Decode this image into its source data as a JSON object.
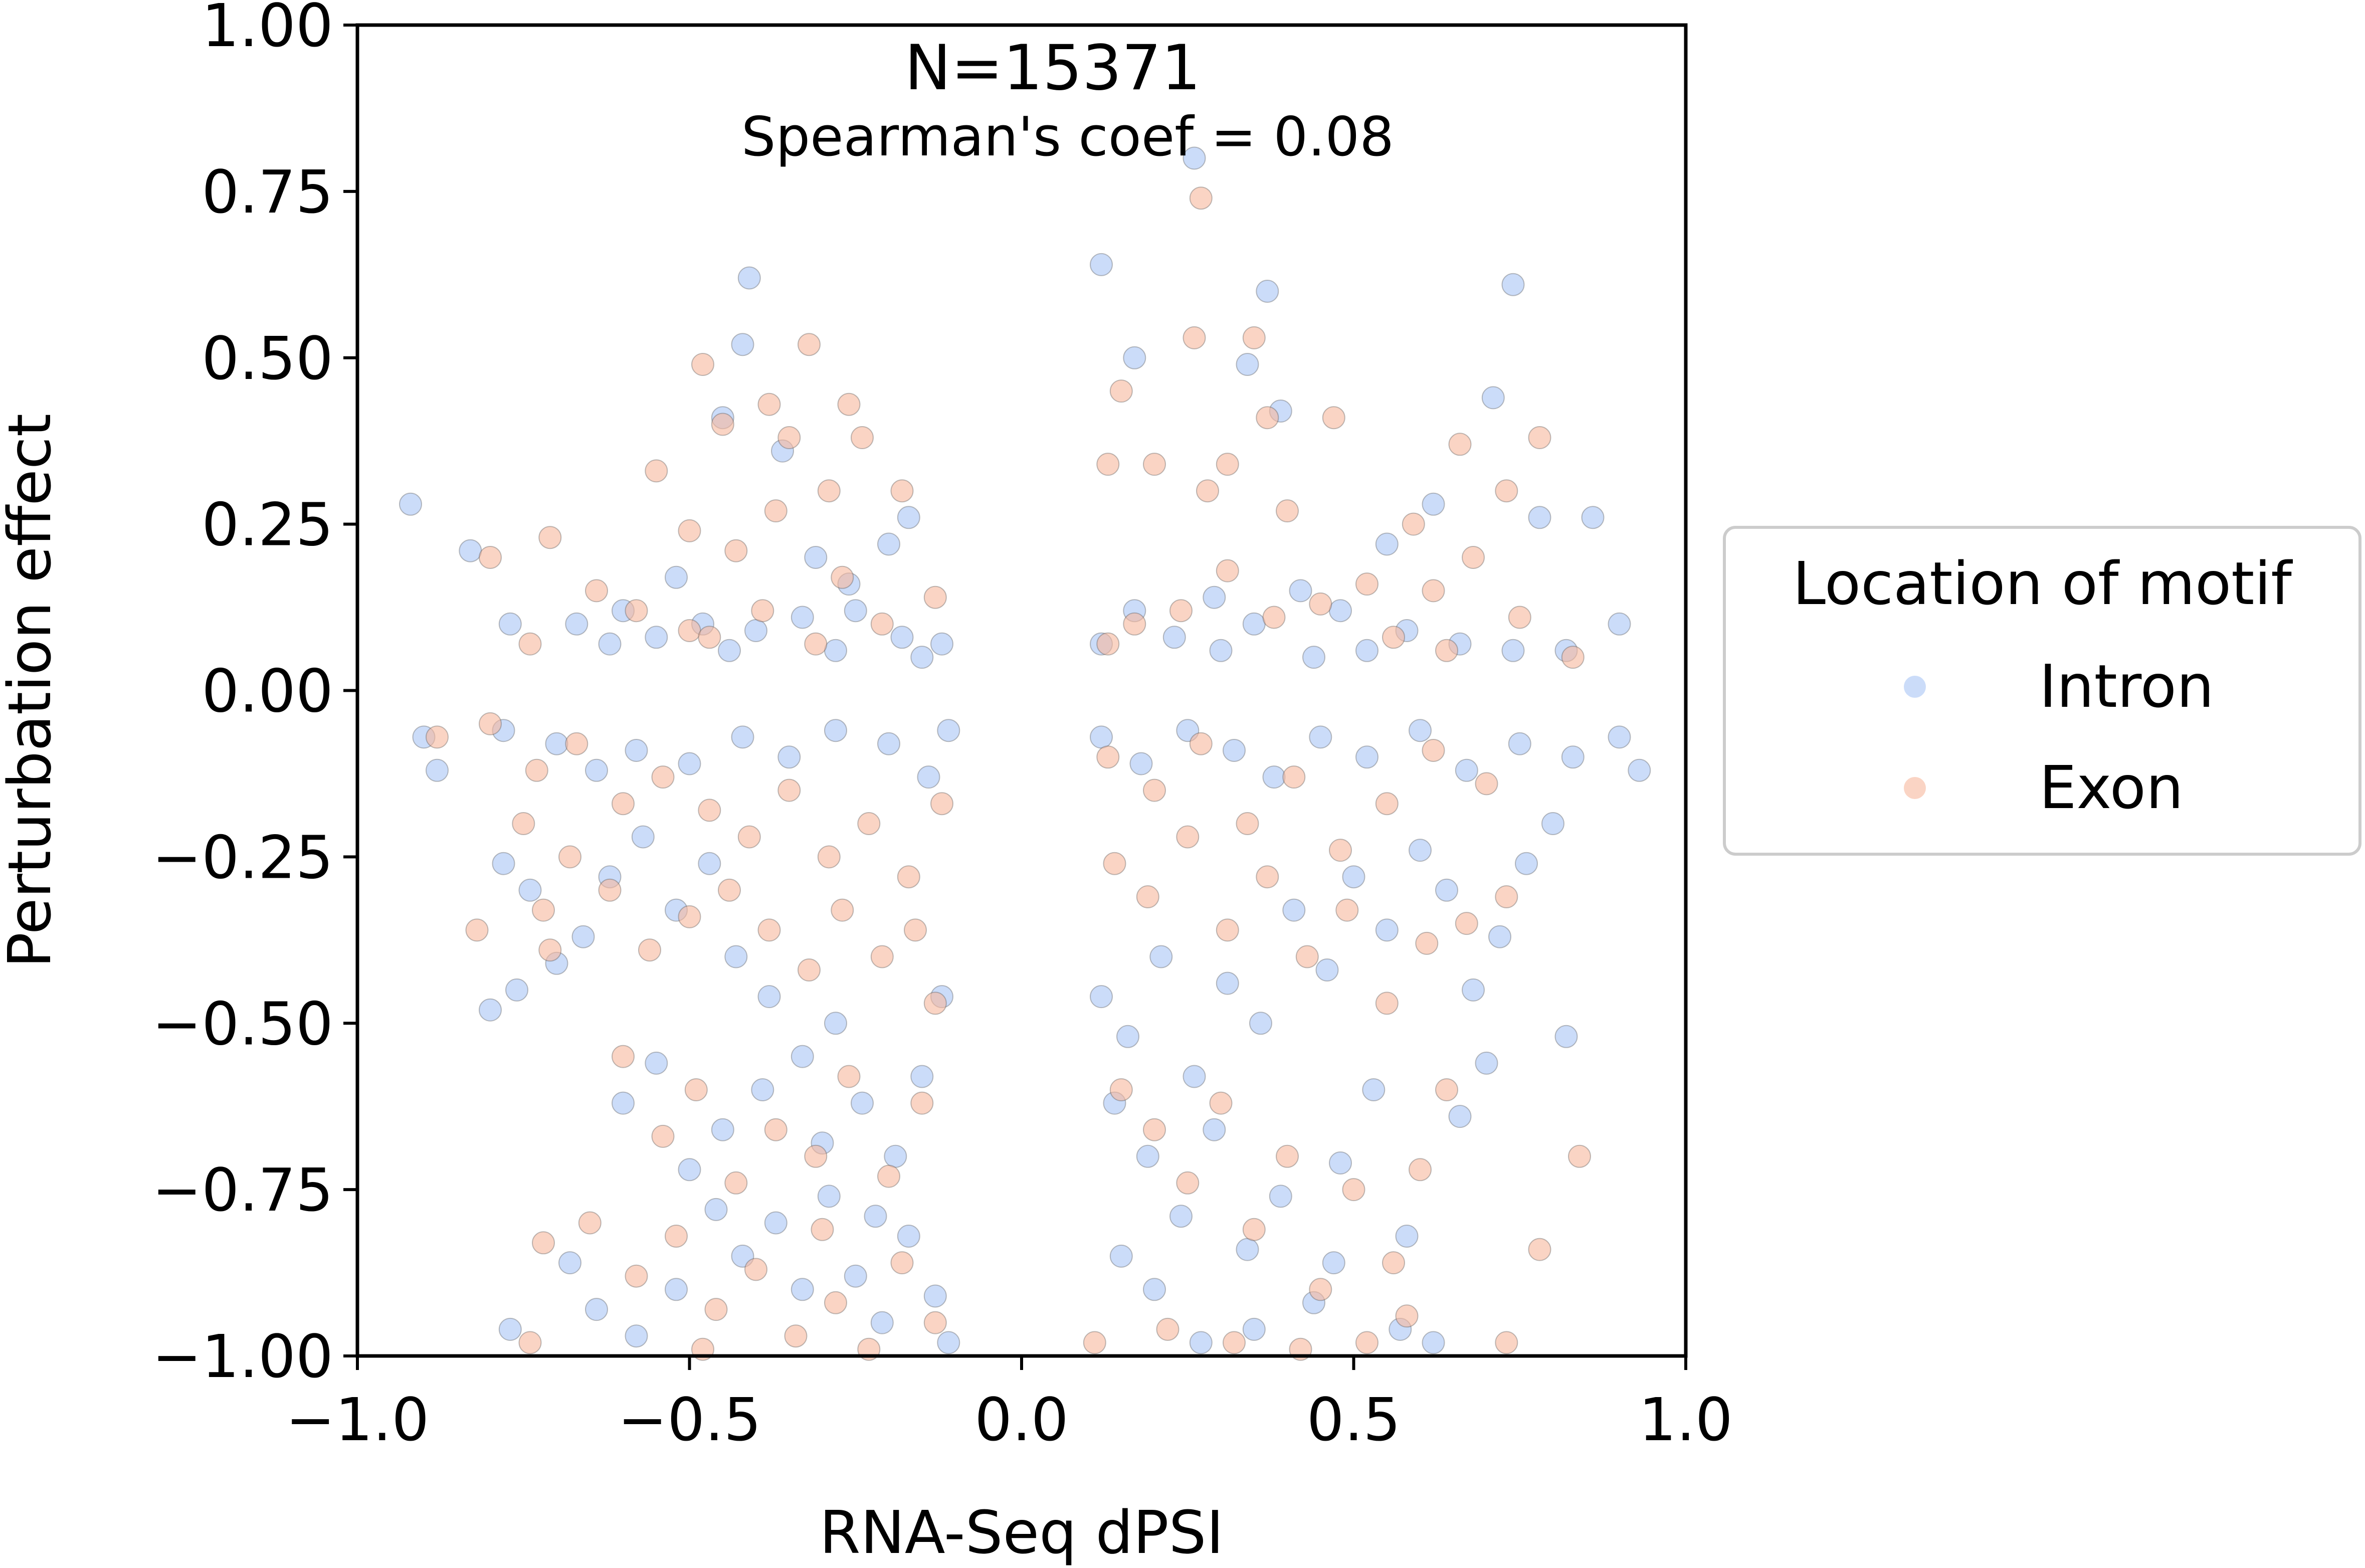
{
  "chart_data": {
    "type": "scatter",
    "xlabel": "RNA-Seq dPSI",
    "ylabel": "Perturbation effect",
    "xlim": [
      -1.0,
      1.0
    ],
    "ylim": [
      -1.0,
      1.0
    ],
    "xticks": [
      "−1.0",
      "−0.5",
      "0.0",
      "0.5",
      "1.0"
    ],
    "yticks": [
      "−1.00",
      "−0.75",
      "−0.50",
      "−0.25",
      "0.00",
      "0.25",
      "0.50",
      "0.75",
      "1.00"
    ],
    "annotations": {
      "n": "N=15371",
      "spearman": "Spearman's coef = 0.08"
    },
    "grid": false,
    "legend": {
      "title": "Location of motif",
      "placement": "right, outside"
    },
    "series": [
      {
        "name": "Intron",
        "color": "#a9c4f5",
        "points": [
          [
            -0.92,
            0.28
          ],
          [
            -0.83,
            0.21
          ],
          [
            -0.41,
            0.62
          ],
          [
            -0.42,
            0.52
          ],
          [
            -0.45,
            0.41
          ],
          [
            -0.36,
            0.36
          ],
          [
            -0.26,
            0.16
          ],
          [
            -0.2,
            0.22
          ],
          [
            -0.17,
            0.26
          ],
          [
            -0.31,
            0.2
          ],
          [
            -0.52,
            0.17
          ],
          [
            -0.6,
            0.12
          ],
          [
            -0.67,
            0.1
          ],
          [
            -0.77,
            0.1
          ],
          [
            -0.55,
            0.08
          ],
          [
            -0.48,
            0.1
          ],
          [
            -0.4,
            0.09
          ],
          [
            -0.33,
            0.11
          ],
          [
            -0.25,
            0.12
          ],
          [
            -0.18,
            0.08
          ],
          [
            -0.12,
            0.07
          ],
          [
            -0.62,
            0.07
          ],
          [
            -0.44,
            0.06
          ],
          [
            -0.28,
            0.06
          ],
          [
            -0.15,
            0.05
          ],
          [
            -0.9,
            -0.07
          ],
          [
            -0.88,
            -0.12
          ],
          [
            -0.78,
            -0.06
          ],
          [
            -0.7,
            -0.08
          ],
          [
            -0.64,
            -0.12
          ],
          [
            -0.58,
            -0.09
          ],
          [
            -0.5,
            -0.11
          ],
          [
            -0.42,
            -0.07
          ],
          [
            -0.35,
            -0.1
          ],
          [
            -0.28,
            -0.06
          ],
          [
            -0.2,
            -0.08
          ],
          [
            -0.14,
            -0.13
          ],
          [
            -0.11,
            -0.06
          ],
          [
            -0.78,
            -0.26
          ],
          [
            -0.74,
            -0.3
          ],
          [
            -0.7,
            -0.41
          ],
          [
            -0.8,
            -0.48
          ],
          [
            -0.76,
            -0.45
          ],
          [
            -0.66,
            -0.37
          ],
          [
            -0.62,
            -0.28
          ],
          [
            -0.57,
            -0.22
          ],
          [
            -0.52,
            -0.33
          ],
          [
            -0.47,
            -0.26
          ],
          [
            -0.43,
            -0.4
          ],
          [
            -0.38,
            -0.46
          ],
          [
            -0.33,
            -0.55
          ],
          [
            -0.28,
            -0.5
          ],
          [
            -0.24,
            -0.62
          ],
          [
            -0.19,
            -0.7
          ],
          [
            -0.15,
            -0.58
          ],
          [
            -0.12,
            -0.46
          ],
          [
            -0.6,
            -0.62
          ],
          [
            -0.55,
            -0.56
          ],
          [
            -0.5,
            -0.72
          ],
          [
            -0.46,
            -0.78
          ],
          [
            -0.42,
            -0.85
          ],
          [
            -0.37,
            -0.8
          ],
          [
            -0.33,
            -0.9
          ],
          [
            -0.29,
            -0.76
          ],
          [
            -0.25,
            -0.88
          ],
          [
            -0.21,
            -0.95
          ],
          [
            -0.17,
            -0.82
          ],
          [
            -0.13,
            -0.91
          ],
          [
            -0.11,
            -0.98
          ],
          [
            -0.77,
            -0.96
          ],
          [
            -0.68,
            -0.86
          ],
          [
            -0.64,
            -0.93
          ],
          [
            -0.58,
            -0.97
          ],
          [
            -0.52,
            -0.9
          ],
          [
            -0.45,
            -0.66
          ],
          [
            -0.39,
            -0.6
          ],
          [
            -0.3,
            -0.68
          ],
          [
            -0.22,
            -0.79
          ],
          [
            0.12,
            0.64
          ],
          [
            0.26,
            0.8
          ],
          [
            0.37,
            0.6
          ],
          [
            0.34,
            0.49
          ],
          [
            0.17,
            0.5
          ],
          [
            0.39,
            0.42
          ],
          [
            0.74,
            0.61
          ],
          [
            0.71,
            0.44
          ],
          [
            0.78,
            0.26
          ],
          [
            0.86,
            0.26
          ],
          [
            0.9,
            0.1
          ],
          [
            0.82,
            0.06
          ],
          [
            0.62,
            0.28
          ],
          [
            0.55,
            0.22
          ],
          [
            0.48,
            0.12
          ],
          [
            0.42,
            0.15
          ],
          [
            0.35,
            0.1
          ],
          [
            0.29,
            0.14
          ],
          [
            0.23,
            0.08
          ],
          [
            0.17,
            0.12
          ],
          [
            0.12,
            0.07
          ],
          [
            0.52,
            0.06
          ],
          [
            0.58,
            0.09
          ],
          [
            0.66,
            0.07
          ],
          [
            0.74,
            0.06
          ],
          [
            0.3,
            0.06
          ],
          [
            0.44,
            0.05
          ],
          [
            0.12,
            -0.07
          ],
          [
            0.18,
            -0.11
          ],
          [
            0.25,
            -0.06
          ],
          [
            0.32,
            -0.09
          ],
          [
            0.38,
            -0.13
          ],
          [
            0.45,
            -0.07
          ],
          [
            0.52,
            -0.1
          ],
          [
            0.6,
            -0.06
          ],
          [
            0.67,
            -0.12
          ],
          [
            0.75,
            -0.08
          ],
          [
            0.83,
            -0.1
          ],
          [
            0.9,
            -0.07
          ],
          [
            0.93,
            -0.12
          ],
          [
            0.8,
            -0.2
          ],
          [
            0.76,
            -0.26
          ],
          [
            0.72,
            -0.37
          ],
          [
            0.68,
            -0.45
          ],
          [
            0.64,
            -0.3
          ],
          [
            0.6,
            -0.24
          ],
          [
            0.55,
            -0.36
          ],
          [
            0.5,
            -0.28
          ],
          [
            0.46,
            -0.42
          ],
          [
            0.41,
            -0.33
          ],
          [
            0.36,
            -0.5
          ],
          [
            0.31,
            -0.44
          ],
          [
            0.26,
            -0.58
          ],
          [
            0.21,
            -0.4
          ],
          [
            0.16,
            -0.52
          ],
          [
            0.12,
            -0.46
          ],
          [
            0.14,
            -0.62
          ],
          [
            0.19,
            -0.7
          ],
          [
            0.24,
            -0.79
          ],
          [
            0.29,
            -0.66
          ],
          [
            0.34,
            -0.84
          ],
          [
            0.39,
            -0.76
          ],
          [
            0.44,
            -0.92
          ],
          [
            0.48,
            -0.71
          ],
          [
            0.53,
            -0.6
          ],
          [
            0.58,
            -0.82
          ],
          [
            0.62,
            -0.98
          ],
          [
            0.57,
            -0.96
          ],
          [
            0.47,
            -0.86
          ],
          [
            0.35,
            -0.96
          ],
          [
            0.27,
            -0.98
          ],
          [
            0.2,
            -0.9
          ],
          [
            0.15,
            -0.85
          ],
          [
            0.66,
            -0.64
          ],
          [
            0.7,
            -0.56
          ],
          [
            0.82,
            -0.52
          ]
        ]
      },
      {
        "name": "Exon",
        "color": "#f7b79c",
        "points": [
          [
            -0.48,
            0.49
          ],
          [
            -0.32,
            0.52
          ],
          [
            -0.38,
            0.43
          ],
          [
            -0.26,
            0.43
          ],
          [
            -0.35,
            0.38
          ],
          [
            -0.45,
            0.4
          ],
          [
            -0.24,
            0.38
          ],
          [
            -0.18,
            0.3
          ],
          [
            -0.29,
            0.3
          ],
          [
            -0.55,
            0.33
          ],
          [
            -0.37,
            0.27
          ],
          [
            -0.5,
            0.24
          ],
          [
            -0.43,
            0.21
          ],
          [
            -0.27,
            0.17
          ],
          [
            -0.71,
            0.23
          ],
          [
            -0.8,
            0.2
          ],
          [
            -0.64,
            0.15
          ],
          [
            -0.58,
            0.12
          ],
          [
            -0.5,
            0.09
          ],
          [
            -0.39,
            0.12
          ],
          [
            -0.31,
            0.07
          ],
          [
            -0.21,
            0.1
          ],
          [
            -0.13,
            0.14
          ],
          [
            -0.74,
            0.07
          ],
          [
            -0.47,
            0.08
          ],
          [
            -0.88,
            -0.07
          ],
          [
            -0.8,
            -0.05
          ],
          [
            -0.73,
            -0.12
          ],
          [
            -0.67,
            -0.08
          ],
          [
            -0.6,
            -0.17
          ],
          [
            -0.54,
            -0.13
          ],
          [
            -0.47,
            -0.18
          ],
          [
            -0.41,
            -0.22
          ],
          [
            -0.35,
            -0.15
          ],
          [
            -0.29,
            -0.25
          ],
          [
            -0.23,
            -0.2
          ],
          [
            -0.17,
            -0.28
          ],
          [
            -0.12,
            -0.17
          ],
          [
            -0.75,
            -0.2
          ],
          [
            -0.72,
            -0.33
          ],
          [
            -0.68,
            -0.25
          ],
          [
            -0.62,
            -0.3
          ],
          [
            -0.56,
            -0.39
          ],
          [
            -0.5,
            -0.34
          ],
          [
            -0.44,
            -0.3
          ],
          [
            -0.38,
            -0.36
          ],
          [
            -0.32,
            -0.42
          ],
          [
            -0.27,
            -0.33
          ],
          [
            -0.21,
            -0.4
          ],
          [
            -0.16,
            -0.36
          ],
          [
            -0.13,
            -0.47
          ],
          [
            -0.82,
            -0.36
          ],
          [
            -0.71,
            -0.39
          ],
          [
            -0.6,
            -0.55
          ],
          [
            -0.54,
            -0.67
          ],
          [
            -0.49,
            -0.6
          ],
          [
            -0.43,
            -0.74
          ],
          [
            -0.37,
            -0.66
          ],
          [
            -0.31,
            -0.7
          ],
          [
            -0.26,
            -0.58
          ],
          [
            -0.2,
            -0.73
          ],
          [
            -0.15,
            -0.62
          ],
          [
            -0.65,
            -0.8
          ],
          [
            -0.58,
            -0.88
          ],
          [
            -0.52,
            -0.82
          ],
          [
            -0.46,
            -0.93
          ],
          [
            -0.4,
            -0.87
          ],
          [
            -0.34,
            -0.97
          ],
          [
            -0.28,
            -0.92
          ],
          [
            -0.23,
            -0.99
          ],
          [
            -0.18,
            -0.86
          ],
          [
            -0.13,
            -0.95
          ],
          [
            -0.72,
            -0.83
          ],
          [
            -0.74,
            -0.98
          ],
          [
            -0.48,
            -0.99
          ],
          [
            -0.3,
            -0.81
          ],
          [
            0.27,
            0.74
          ],
          [
            0.26,
            0.53
          ],
          [
            0.35,
            0.53
          ],
          [
            0.15,
            0.45
          ],
          [
            0.37,
            0.41
          ],
          [
            0.47,
            0.41
          ],
          [
            0.31,
            0.34
          ],
          [
            0.2,
            0.34
          ],
          [
            0.13,
            0.34
          ],
          [
            0.28,
            0.3
          ],
          [
            0.4,
            0.27
          ],
          [
            0.59,
            0.25
          ],
          [
            0.66,
            0.37
          ],
          [
            0.73,
            0.3
          ],
          [
            0.78,
            0.38
          ],
          [
            0.68,
            0.2
          ],
          [
            0.62,
            0.15
          ],
          [
            0.52,
            0.16
          ],
          [
            0.45,
            0.13
          ],
          [
            0.38,
            0.11
          ],
          [
            0.31,
            0.18
          ],
          [
            0.24,
            0.12
          ],
          [
            0.17,
            0.1
          ],
          [
            0.13,
            0.07
          ],
          [
            0.56,
            0.08
          ],
          [
            0.64,
            0.06
          ],
          [
            0.75,
            0.11
          ],
          [
            0.83,
            0.05
          ],
          [
            0.13,
            -0.1
          ],
          [
            0.2,
            -0.15
          ],
          [
            0.27,
            -0.08
          ],
          [
            0.34,
            -0.2
          ],
          [
            0.41,
            -0.13
          ],
          [
            0.48,
            -0.24
          ],
          [
            0.55,
            -0.17
          ],
          [
            0.62,
            -0.09
          ],
          [
            0.7,
            -0.14
          ],
          [
            0.14,
            -0.26
          ],
          [
            0.19,
            -0.31
          ],
          [
            0.25,
            -0.22
          ],
          [
            0.31,
            -0.36
          ],
          [
            0.37,
            -0.28
          ],
          [
            0.43,
            -0.4
          ],
          [
            0.49,
            -0.33
          ],
          [
            0.55,
            -0.47
          ],
          [
            0.61,
            -0.38
          ],
          [
            0.67,
            -0.35
          ],
          [
            0.73,
            -0.31
          ],
          [
            0.15,
            -0.6
          ],
          [
            0.2,
            -0.66
          ],
          [
            0.25,
            -0.74
          ],
          [
            0.3,
            -0.62
          ],
          [
            0.35,
            -0.81
          ],
          [
            0.4,
            -0.7
          ],
          [
            0.45,
            -0.9
          ],
          [
            0.5,
            -0.75
          ],
          [
            0.56,
            -0.86
          ],
          [
            0.6,
            -0.72
          ],
          [
            0.64,
            -0.6
          ],
          [
            0.58,
            -0.94
          ],
          [
            0.52,
            -0.98
          ],
          [
            0.42,
            -0.99
          ],
          [
            0.32,
            -0.98
          ],
          [
            0.22,
            -0.96
          ],
          [
            0.11,
            -0.98
          ],
          [
            0.73,
            -0.98
          ],
          [
            0.78,
            -0.84
          ],
          [
            0.84,
            -0.7
          ]
        ]
      }
    ]
  }
}
